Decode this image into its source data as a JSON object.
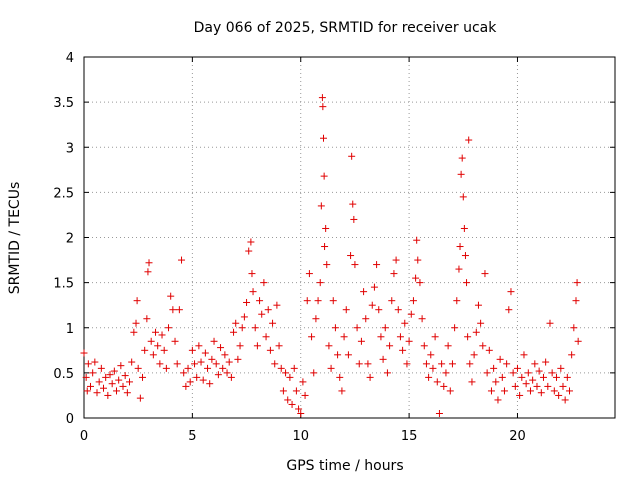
{
  "chart_data": {
    "type": "scatter",
    "title": "Day 066 of 2025, SRMTID for receiver ucak",
    "xlabel": "GPS time / hours",
    "ylabel": "SRMTID / TECUs",
    "xlim": [
      0,
      24.5
    ],
    "ylim": [
      0,
      4
    ],
    "xticks": [
      0,
      5,
      10,
      15,
      20
    ],
    "yticks": [
      0,
      0.5,
      1,
      1.5,
      2,
      2.5,
      3,
      3.5,
      4
    ],
    "xtick_labels": [
      "0",
      "5",
      "10",
      "15",
      "20"
    ],
    "ytick_labels": [
      "0",
      "0.5",
      "1",
      "1.5",
      "2",
      "2.5",
      "3",
      "3.5",
      "4"
    ],
    "grid": true,
    "marker": "+",
    "color": "#e00000",
    "series": [
      {
        "name": "SRMTID",
        "points": [
          [
            0.0,
            0.72
          ],
          [
            0.1,
            0.45
          ],
          [
            0.15,
            0.3
          ],
          [
            0.2,
            0.6
          ],
          [
            0.3,
            0.35
          ],
          [
            0.4,
            0.5
          ],
          [
            0.5,
            0.62
          ],
          [
            0.6,
            0.28
          ],
          [
            0.7,
            0.4
          ],
          [
            0.8,
            0.55
          ],
          [
            0.9,
            0.33
          ],
          [
            1.0,
            0.45
          ],
          [
            1.1,
            0.25
          ],
          [
            1.2,
            0.48
          ],
          [
            1.3,
            0.38
          ],
          [
            1.4,
            0.52
          ],
          [
            1.5,
            0.3
          ],
          [
            1.6,
            0.42
          ],
          [
            1.7,
            0.58
          ],
          [
            1.8,
            0.35
          ],
          [
            1.9,
            0.47
          ],
          [
            2.0,
            0.28
          ],
          [
            2.1,
            0.4
          ],
          [
            2.2,
            0.62
          ],
          [
            2.3,
            0.95
          ],
          [
            2.4,
            1.05
          ],
          [
            2.45,
            1.3
          ],
          [
            2.5,
            0.55
          ],
          [
            2.6,
            0.22
          ],
          [
            2.7,
            0.45
          ],
          [
            2.8,
            0.75
          ],
          [
            2.9,
            1.1
          ],
          [
            2.95,
            1.62
          ],
          [
            3.0,
            1.72
          ],
          [
            3.1,
            0.85
          ],
          [
            3.2,
            0.7
          ],
          [
            3.3,
            0.95
          ],
          [
            3.4,
            0.8
          ],
          [
            3.5,
            0.6
          ],
          [
            3.6,
            0.92
          ],
          [
            3.7,
            0.75
          ],
          [
            3.8,
            0.55
          ],
          [
            3.9,
            1.0
          ],
          [
            4.0,
            1.35
          ],
          [
            4.1,
            1.2
          ],
          [
            4.2,
            0.85
          ],
          [
            4.3,
            0.6
          ],
          [
            4.4,
            1.2
          ],
          [
            4.5,
            1.75
          ],
          [
            4.6,
            0.5
          ],
          [
            4.7,
            0.35
          ],
          [
            4.8,
            0.55
          ],
          [
            4.9,
            0.4
          ],
          [
            5.0,
            0.75
          ],
          [
            5.1,
            0.6
          ],
          [
            5.2,
            0.45
          ],
          [
            5.3,
            0.8
          ],
          [
            5.4,
            0.62
          ],
          [
            5.5,
            0.42
          ],
          [
            5.6,
            0.72
          ],
          [
            5.7,
            0.55
          ],
          [
            5.8,
            0.38
          ],
          [
            5.9,
            0.65
          ],
          [
            6.0,
            0.85
          ],
          [
            6.1,
            0.6
          ],
          [
            6.2,
            0.48
          ],
          [
            6.3,
            0.78
          ],
          [
            6.4,
            0.55
          ],
          [
            6.5,
            0.7
          ],
          [
            6.6,
            0.5
          ],
          [
            6.7,
            0.62
          ],
          [
            6.8,
            0.45
          ],
          [
            6.9,
            0.95
          ],
          [
            7.0,
            1.05
          ],
          [
            7.1,
            0.65
          ],
          [
            7.2,
            0.8
          ],
          [
            7.3,
            1.0
          ],
          [
            7.4,
            1.12
          ],
          [
            7.5,
            1.28
          ],
          [
            7.6,
            1.85
          ],
          [
            7.7,
            1.95
          ],
          [
            7.75,
            1.6
          ],
          [
            7.8,
            1.4
          ],
          [
            7.9,
            1.0
          ],
          [
            8.0,
            0.8
          ],
          [
            8.1,
            1.3
          ],
          [
            8.2,
            1.15
          ],
          [
            8.3,
            1.5
          ],
          [
            8.4,
            0.9
          ],
          [
            8.5,
            1.2
          ],
          [
            8.6,
            0.75
          ],
          [
            8.7,
            1.05
          ],
          [
            8.8,
            0.6
          ],
          [
            8.9,
            1.25
          ],
          [
            9.0,
            0.8
          ],
          [
            9.1,
            0.55
          ],
          [
            9.2,
            0.3
          ],
          [
            9.3,
            0.5
          ],
          [
            9.4,
            0.2
          ],
          [
            9.5,
            0.45
          ],
          [
            9.6,
            0.15
          ],
          [
            9.7,
            0.55
          ],
          [
            9.8,
            0.3
          ],
          [
            9.9,
            0.1
          ],
          [
            10.0,
            0.05
          ],
          [
            10.1,
            0.4
          ],
          [
            10.2,
            0.25
          ],
          [
            10.3,
            1.3
          ],
          [
            10.4,
            1.6
          ],
          [
            10.5,
            0.9
          ],
          [
            10.6,
            0.5
          ],
          [
            10.7,
            1.1
          ],
          [
            10.8,
            1.3
          ],
          [
            10.9,
            1.5
          ],
          [
            10.95,
            2.35
          ],
          [
            11.0,
            3.55
          ],
          [
            11.02,
            3.45
          ],
          [
            11.05,
            3.1
          ],
          [
            11.08,
            2.68
          ],
          [
            11.1,
            1.9
          ],
          [
            11.15,
            2.1
          ],
          [
            11.2,
            1.7
          ],
          [
            11.3,
            0.8
          ],
          [
            11.4,
            0.55
          ],
          [
            11.5,
            1.3
          ],
          [
            11.6,
            1.0
          ],
          [
            11.7,
            0.7
          ],
          [
            11.8,
            0.45
          ],
          [
            11.9,
            0.3
          ],
          [
            12.0,
            0.9
          ],
          [
            12.1,
            1.2
          ],
          [
            12.2,
            0.7
          ],
          [
            12.3,
            1.8
          ],
          [
            12.35,
            2.9
          ],
          [
            12.4,
            2.37
          ],
          [
            12.45,
            2.2
          ],
          [
            12.5,
            1.7
          ],
          [
            12.6,
            1.0
          ],
          [
            12.7,
            0.6
          ],
          [
            12.8,
            0.85
          ],
          [
            12.9,
            1.4
          ],
          [
            13.0,
            1.1
          ],
          [
            13.1,
            0.6
          ],
          [
            13.2,
            0.45
          ],
          [
            13.3,
            1.25
          ],
          [
            13.4,
            1.45
          ],
          [
            13.5,
            1.7
          ],
          [
            13.6,
            1.2
          ],
          [
            13.7,
            0.9
          ],
          [
            13.8,
            0.65
          ],
          [
            13.9,
            1.0
          ],
          [
            14.0,
            0.5
          ],
          [
            14.1,
            0.8
          ],
          [
            14.2,
            1.3
          ],
          [
            14.3,
            1.6
          ],
          [
            14.4,
            1.75
          ],
          [
            14.5,
            1.2
          ],
          [
            14.6,
            0.9
          ],
          [
            14.7,
            0.75
          ],
          [
            14.8,
            1.05
          ],
          [
            14.9,
            0.6
          ],
          [
            15.0,
            0.85
          ],
          [
            15.1,
            1.15
          ],
          [
            15.2,
            1.3
          ],
          [
            15.3,
            1.55
          ],
          [
            15.35,
            1.97
          ],
          [
            15.4,
            1.75
          ],
          [
            15.5,
            1.5
          ],
          [
            15.6,
            1.1
          ],
          [
            15.7,
            0.8
          ],
          [
            15.8,
            0.6
          ],
          [
            15.9,
            0.45
          ],
          [
            16.0,
            0.7
          ],
          [
            16.1,
            0.55
          ],
          [
            16.2,
            0.9
          ],
          [
            16.3,
            0.4
          ],
          [
            16.4,
            0.05
          ],
          [
            16.5,
            0.6
          ],
          [
            16.6,
            0.35
          ],
          [
            16.7,
            0.5
          ],
          [
            16.8,
            0.8
          ],
          [
            16.9,
            0.3
          ],
          [
            17.0,
            0.6
          ],
          [
            17.1,
            1.0
          ],
          [
            17.2,
            1.3
          ],
          [
            17.3,
            1.65
          ],
          [
            17.35,
            1.9
          ],
          [
            17.4,
            2.7
          ],
          [
            17.45,
            2.88
          ],
          [
            17.5,
            2.45
          ],
          [
            17.55,
            2.1
          ],
          [
            17.6,
            1.8
          ],
          [
            17.65,
            1.5
          ],
          [
            17.7,
            0.9
          ],
          [
            17.75,
            3.08
          ],
          [
            17.8,
            0.6
          ],
          [
            17.9,
            0.4
          ],
          [
            18.0,
            0.7
          ],
          [
            18.1,
            0.95
          ],
          [
            18.2,
            1.25
          ],
          [
            18.3,
            1.05
          ],
          [
            18.4,
            0.8
          ],
          [
            18.5,
            1.6
          ],
          [
            18.6,
            0.5
          ],
          [
            18.7,
            0.75
          ],
          [
            18.8,
            0.3
          ],
          [
            18.9,
            0.55
          ],
          [
            19.0,
            0.4
          ],
          [
            19.1,
            0.2
          ],
          [
            19.2,
            0.65
          ],
          [
            19.3,
            0.45
          ],
          [
            19.4,
            0.3
          ],
          [
            19.5,
            0.6
          ],
          [
            19.6,
            1.2
          ],
          [
            19.7,
            1.4
          ],
          [
            19.8,
            0.5
          ],
          [
            19.9,
            0.35
          ],
          [
            20.0,
            0.55
          ],
          [
            20.1,
            0.25
          ],
          [
            20.2,
            0.45
          ],
          [
            20.3,
            0.7
          ],
          [
            20.4,
            0.38
          ],
          [
            20.5,
            0.5
          ],
          [
            20.6,
            0.3
          ],
          [
            20.7,
            0.42
          ],
          [
            20.8,
            0.6
          ],
          [
            20.9,
            0.35
          ],
          [
            21.0,
            0.52
          ],
          [
            21.1,
            0.28
          ],
          [
            21.2,
            0.45
          ],
          [
            21.3,
            0.62
          ],
          [
            21.4,
            0.35
          ],
          [
            21.5,
            1.05
          ],
          [
            21.6,
            0.5
          ],
          [
            21.7,
            0.3
          ],
          [
            21.8,
            0.45
          ],
          [
            21.9,
            0.25
          ],
          [
            22.0,
            0.55
          ],
          [
            22.1,
            0.35
          ],
          [
            22.2,
            0.2
          ],
          [
            22.3,
            0.45
          ],
          [
            22.4,
            0.3
          ],
          [
            22.5,
            0.7
          ],
          [
            22.6,
            1.0
          ],
          [
            22.7,
            1.3
          ],
          [
            22.75,
            1.5
          ],
          [
            22.8,
            0.85
          ]
        ]
      }
    ]
  }
}
